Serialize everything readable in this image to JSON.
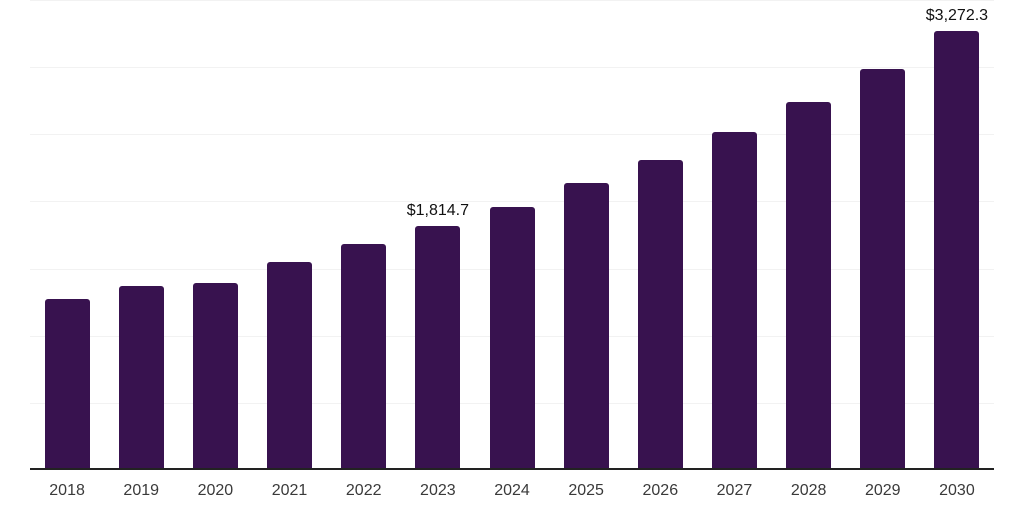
{
  "chart_data": {
    "type": "bar",
    "title": "",
    "xlabel": "",
    "ylabel": "",
    "categories": [
      "2018",
      "2019",
      "2020",
      "2021",
      "2022",
      "2023",
      "2024",
      "2025",
      "2026",
      "2027",
      "2028",
      "2029",
      "2030"
    ],
    "values": [
      1270,
      1370,
      1395,
      1550,
      1680,
      1814.7,
      1960,
      2135,
      2305,
      2515,
      2740,
      2990,
      3272.3
    ],
    "point_labels": [
      "",
      "",
      "",
      "",
      "",
      "$1,814.7",
      "",
      "",
      "",
      "",
      "",
      "",
      "$3,272.3"
    ],
    "ylim": [
      0,
      3500
    ],
    "gridline_step": 500,
    "grid": true,
    "legend_position": "none"
  },
  "colors": {
    "background": "#ffffff",
    "bar": "#38124f",
    "axis": "#222222",
    "gridline": "#f2f2f2",
    "value_label_text": "#111111",
    "tick_text": "#3a3a3a"
  }
}
